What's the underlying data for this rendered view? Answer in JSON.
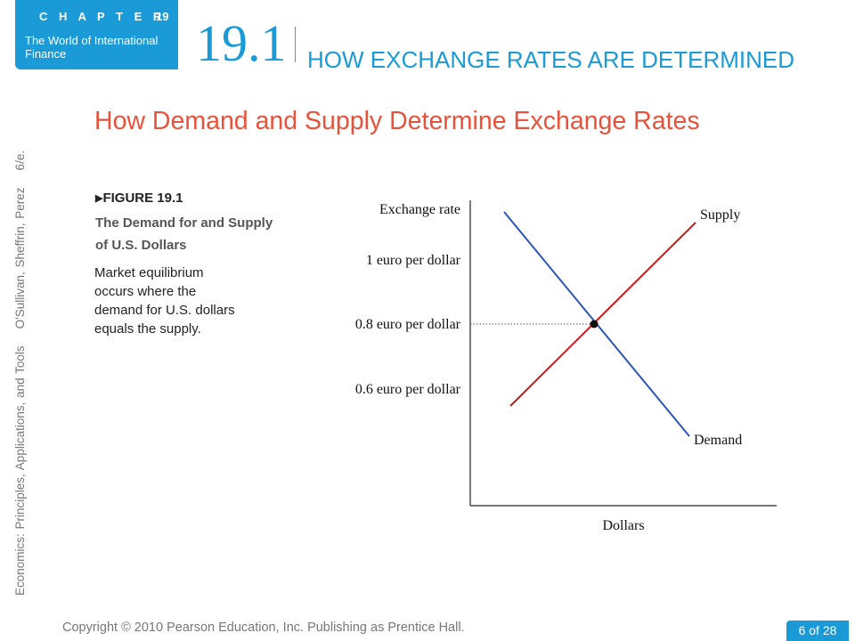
{
  "chapter": {
    "word": "C H A P T E R",
    "number": "19",
    "title": "The World of International Finance"
  },
  "section": {
    "number": "19.1",
    "title": "HOW EXCHANGE RATES ARE DETERMINED"
  },
  "side_text": "Economics: Principles, Applications, and Tools    O'Sullivan, Sheffrin, Perez    6/e.",
  "heading": "How Demand and Supply Determine Exchange Rates",
  "figure": {
    "label": "FIGURE 19.1",
    "title": "The Demand for and Supply of U.S. Dollars",
    "caption": "Market equilibrium occurs where the demand for U.S. dollars equals the supply."
  },
  "chart_data": {
    "type": "line",
    "ylabel": "Exchange rate",
    "xlabel": "Dollars",
    "ytick_labels": [
      "1 euro per dollar",
      "0.8 euro per dollar",
      "0.6 euro per dollar"
    ],
    "y_values": [
      1.0,
      0.8,
      0.6
    ],
    "series": [
      {
        "name": "Supply",
        "color": "#d01818",
        "slope": "upward"
      },
      {
        "name": "Demand",
        "color": "#2a55b8",
        "slope": "downward"
      }
    ],
    "equilibrium": {
      "y": 0.8,
      "marker": "dot",
      "guide_line": "dotted"
    },
    "grid": false,
    "legend": "labels on curves"
  },
  "footer": {
    "copyright": "Copyright © 2010 Pearson Education, Inc. Publishing as Prentice Hall.",
    "page": "6 of 28"
  },
  "colors": {
    "accent": "#1a9ad6",
    "heading": "#e8523a"
  }
}
